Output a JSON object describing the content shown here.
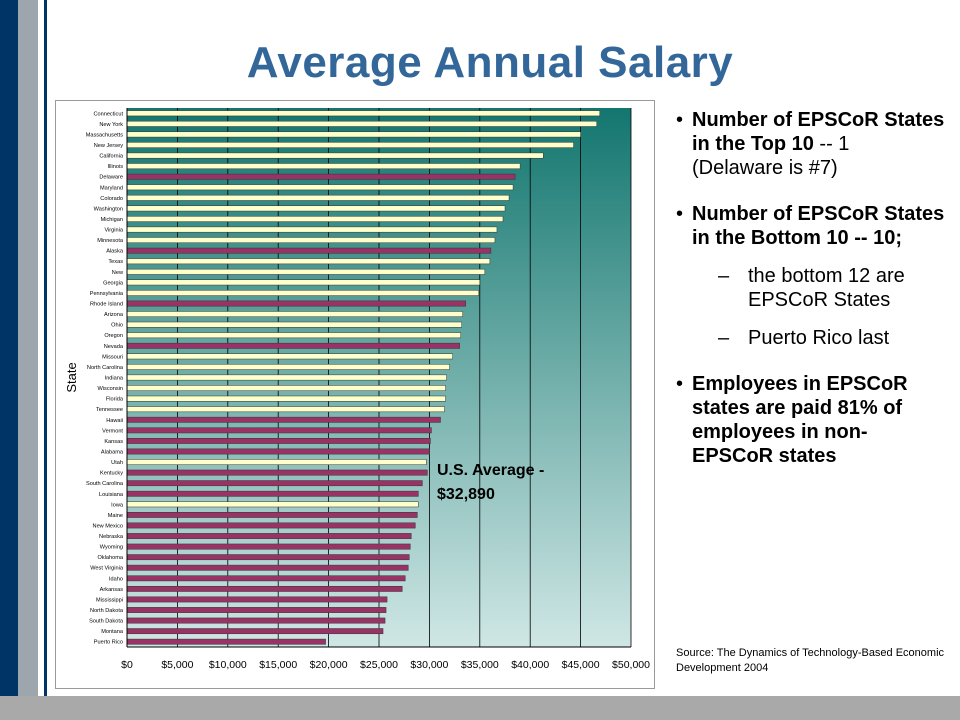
{
  "title": "Average Annual Salary",
  "bullets": [
    {
      "bold": "Number of EPSCoR States in the Top 10",
      "rest": " -- 1 (Delaware is #7)"
    },
    {
      "bold": "Number of EPSCoR States in the Bottom 10 -- 10;",
      "rest": ""
    },
    {
      "bold": "Employees in EPSCoR states are paid 81% of employees in non-EPSCoR states",
      "rest": ""
    }
  ],
  "subbullets": [
    "the bottom 12 are EPSCoR States",
    "Puerto Rico last"
  ],
  "source": {
    "prefix": "Source:",
    "text": " The Dynamics of Technology-Based Economic Development 2004"
  },
  "annotation": "U.S. Average -\n$32,890",
  "colors": {
    "title": "#336699",
    "bar_epscor": "#993366",
    "bar_non_epscor": "#ffffcc",
    "bg_top": "#13766f",
    "bg_bottom": "#cfe7e5",
    "navy": "#003366"
  },
  "chart_data": {
    "type": "bar",
    "orientation": "horizontal",
    "ylabel": "State",
    "xlabel": "",
    "xlim": [
      0,
      50000
    ],
    "xticks": [
      "$0",
      "$5,000",
      "$10,000",
      "$15,000",
      "$20,000",
      "$25,000",
      "$30,000",
      "$35,000",
      "$40,000",
      "$45,000",
      "$50,000"
    ],
    "reference_line": 32890,
    "categories": [
      "Connecticut",
      "New York",
      "Massachusetts",
      "New Jersey",
      "California",
      "Illinois",
      "Delaware",
      "Maryland",
      "Colorado",
      "Washington",
      "Michigan",
      "Virginia",
      "Minnesota",
      "Alaska",
      "Texas",
      "New",
      "Georgia",
      "Pennsylvania",
      "Rhode Island",
      "Arizona",
      "Ohio",
      "Oregon",
      "Nevada",
      "Missouri",
      "North Carolina",
      "Indiana",
      "Wisconsin",
      "Florida",
      "Tennessee",
      "Hawaii",
      "Vermont",
      "Kansas",
      "Alabama",
      "Utah",
      "Kentucky",
      "South Carolina",
      "Louisiana",
      "Iowa",
      "Maine",
      "New Mexico",
      "Nebraska",
      "Wyoming",
      "Oklahoma",
      "West Virginia",
      "Idaho",
      "Arkansas",
      "Mississippi",
      "North Dakota",
      "South Dakota",
      "Montana",
      "Puerto Rico"
    ],
    "values": [
      46900,
      46600,
      45000,
      44300,
      41300,
      39000,
      38500,
      38300,
      37900,
      37500,
      37300,
      36700,
      36500,
      36100,
      36000,
      35500,
      35000,
      34900,
      33600,
      33300,
      33200,
      33100,
      33000,
      32300,
      32000,
      31700,
      31600,
      31600,
      31500,
      31100,
      30200,
      30100,
      30000,
      29700,
      29800,
      29300,
      28900,
      28900,
      28800,
      28600,
      28200,
      28100,
      28000,
      27900,
      27600,
      27300,
      25800,
      25700,
      25600,
      25400,
      19700
    ],
    "epscor": [
      false,
      false,
      false,
      false,
      false,
      false,
      true,
      false,
      false,
      false,
      false,
      false,
      false,
      true,
      false,
      false,
      false,
      false,
      true,
      false,
      false,
      false,
      true,
      false,
      false,
      false,
      false,
      false,
      false,
      true,
      true,
      true,
      true,
      false,
      true,
      true,
      true,
      false,
      true,
      true,
      true,
      true,
      true,
      true,
      true,
      true,
      true,
      true,
      true,
      true,
      true
    ]
  }
}
